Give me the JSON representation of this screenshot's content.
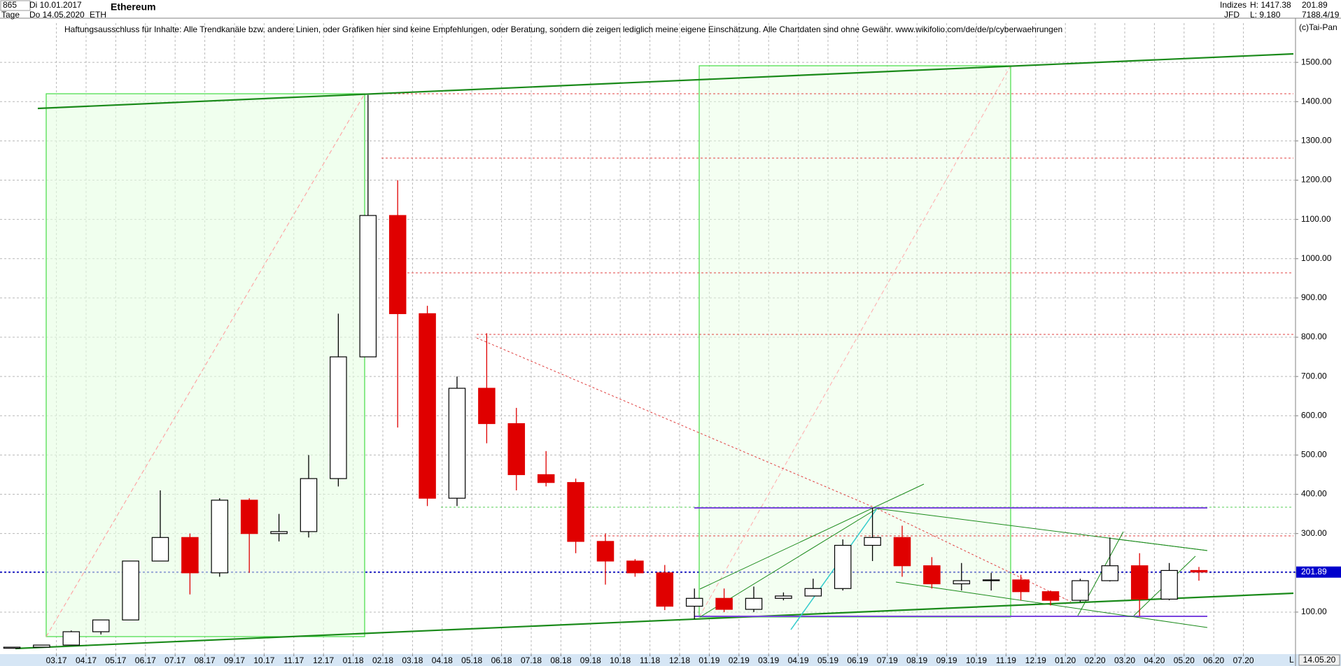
{
  "header": {
    "id": "865",
    "start": "Di 10.01.2017",
    "period": "Tage",
    "end": "Do 14.05.2020",
    "symbol": "ETH",
    "market": "Indizes",
    "broker": "JFD",
    "high_label": "H: 1417.38",
    "low_label": "L: 9.180",
    "code": "7188.4/19",
    "copyright": "(c)Tai-Pan",
    "disclaimer": "Haftungsausschluss für Inhalte: Alle Trendkanäle bzw. andere Linien, oder Grafiken hier sind keine Empfehlungen, oder Beratung, sondern die zeigen lediglich meine eigene Einschätzung. Alle Chartdaten sind ohne Gewähr.  www.wikifolio.com/de/de/p/cyberwaehrungen",
    "date_marker": "14.05.20",
    "axis_letter": "L"
  },
  "chart_data": {
    "type": "candlestick",
    "title": "Ethereum",
    "categories": [
      null,
      null,
      "03.17",
      "04.17",
      "05.17",
      "06.17",
      "07.17",
      "08.17",
      "09.17",
      "10.17",
      "11.17",
      "12.17",
      "01.18",
      "02.18",
      "03.18",
      "04.18",
      "05.18",
      "06.18",
      "07.18",
      "08.18",
      "09.18",
      "10.18",
      "11.18",
      "12.18",
      "01.19",
      "02.19",
      "03.19",
      "04.19",
      "05.19",
      "06.19",
      "07.19",
      "08.19",
      "09.19",
      "10.19",
      "11.19",
      "12.19",
      "01.20",
      "02.20",
      "03.20",
      "04.20",
      "05.20",
      "06.20",
      "07.20"
    ],
    "open": [
      8,
      10.7,
      16,
      50,
      80,
      230,
      290,
      200,
      385,
      300,
      305,
      440,
      750,
      1110,
      860,
      390,
      670,
      580,
      450,
      430,
      280,
      230,
      200,
      115,
      135,
      107,
      135,
      141,
      160,
      270,
      290,
      218,
      172,
      180,
      182,
      152,
      130,
      180,
      218,
      133,
      206,
      null,
      null
    ],
    "high": [
      11,
      16,
      53,
      80,
      230,
      410,
      300,
      390,
      390,
      350,
      500,
      860,
      1417,
      1200,
      880,
      700,
      810,
      620,
      510,
      440,
      300,
      235,
      220,
      160,
      160,
      165,
      150,
      185,
      285,
      365,
      320,
      240,
      225,
      200,
      195,
      155,
      185,
      290,
      250,
      225,
      215,
      null,
      null
    ],
    "low": [
      8,
      10.5,
      16,
      43,
      80,
      230,
      145,
      190,
      200,
      280,
      290,
      420,
      750,
      570,
      370,
      370,
      530,
      410,
      420,
      250,
      170,
      190,
      105,
      82,
      100,
      100,
      130,
      140,
      155,
      230,
      190,
      160,
      155,
      155,
      130,
      117,
      125,
      178,
      90,
      130,
      180,
      null,
      null
    ],
    "close": [
      10.7,
      16,
      50,
      80,
      230,
      290,
      200,
      385,
      300,
      305,
      440,
      750,
      1110,
      860,
      390,
      670,
      580,
      450,
      430,
      280,
      230,
      200,
      115,
      135,
      107,
      135,
      141,
      160,
      270,
      290,
      218,
      172,
      180,
      182,
      152,
      130,
      180,
      218,
      133,
      206,
      202,
      null,
      null
    ],
    "up_color": "#000000",
    "down_color": "#e00000",
    "last": 201.89,
    "last_color": "#0000cc",
    "ylim": [
      -7,
      1600
    ],
    "yticks": [
      {
        "value": 100,
        "label": "100.00"
      },
      {
        "value": 200,
        "label": "200.00"
      },
      {
        "value": 300,
        "label": "300.00"
      },
      {
        "value": 400,
        "label": "400.00"
      },
      {
        "value": 500,
        "label": "500.00"
      },
      {
        "value": 600,
        "label": "600.00"
      },
      {
        "value": 700,
        "label": "700.00"
      },
      {
        "value": 800,
        "label": "800.00"
      },
      {
        "value": 900,
        "label": "900.00"
      },
      {
        "value": 1000,
        "label": "1000.00"
      },
      {
        "value": 1100,
        "label": "1100.00"
      },
      {
        "value": 1200,
        "label": "1200.00"
      },
      {
        "value": 1300,
        "label": "1300.00"
      },
      {
        "value": 1400,
        "label": "1400.00"
      },
      {
        "value": 1500,
        "label": "1500.00"
      }
    ],
    "grid": true
  }
}
